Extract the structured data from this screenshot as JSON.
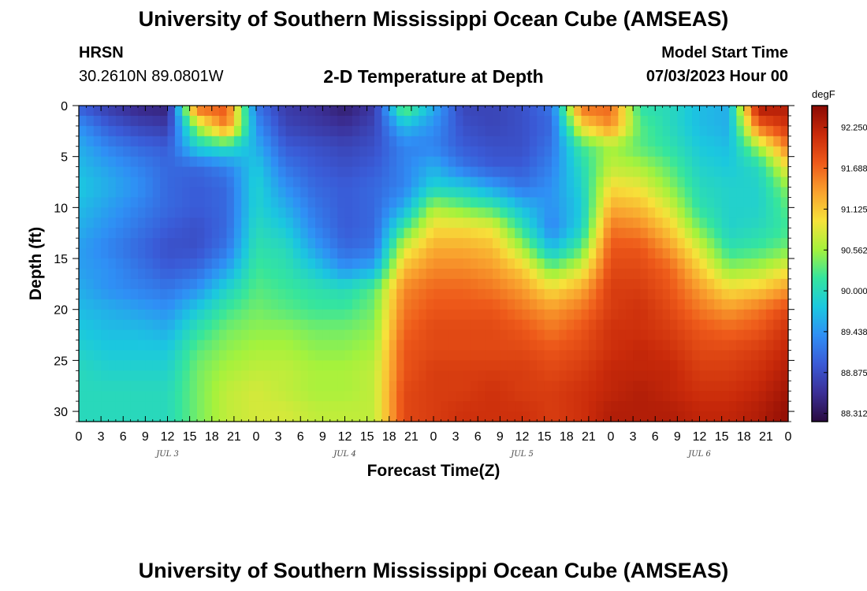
{
  "header": {
    "title": "University of Southern Mississippi Ocean Cube (AMSEAS)",
    "station": "HRSN",
    "coordinates": "30.2610N  89.0801W",
    "subtitle": "2-D Temperature at Depth",
    "start_label": "Model Start Time",
    "start_value": "07/03/2023 Hour 00"
  },
  "footer": {
    "title": "University of Southern Mississippi Ocean Cube (AMSEAS)"
  },
  "chart_data": {
    "type": "heatmap",
    "title": "2-D Temperature at Depth",
    "xlabel": "Forecast Time(Z)",
    "ylabel": "Depth (ft)",
    "units": "degF",
    "x_unit": "hours since model start",
    "xlim": [
      0,
      96
    ],
    "ylim": [
      0,
      31
    ],
    "x_ticks": [
      0,
      3,
      6,
      9,
      12,
      15,
      18,
      21,
      24,
      27,
      30,
      33,
      36,
      39,
      42,
      45,
      48,
      51,
      54,
      57,
      60,
      63,
      66,
      69,
      72,
      75,
      78,
      81,
      84,
      87,
      90,
      93,
      96
    ],
    "x_tick_labels": [
      "0",
      "3",
      "6",
      "9",
      "12",
      "15",
      "18",
      "21",
      "0",
      "3",
      "6",
      "9",
      "12",
      "15",
      "18",
      "21",
      "0",
      "3",
      "6",
      "9",
      "12",
      "15",
      "18",
      "21",
      "0",
      "3",
      "6",
      "9",
      "12",
      "15",
      "18",
      "21",
      "0"
    ],
    "y_ticks": [
      0,
      5,
      10,
      15,
      20,
      25,
      30
    ],
    "day_labels": [
      {
        "label": "JUL 3",
        "hour": 12
      },
      {
        "label": "JUL 4",
        "hour": 36
      },
      {
        "label": "JUL 5",
        "hour": 60
      },
      {
        "label": "JUL 6",
        "hour": 84
      }
    ],
    "colorbar": {
      "vmin": 88.2,
      "vmax": 92.55,
      "ticks": [
        "92.250",
        "91.688",
        "91.125",
        "90.562",
        "90.000",
        "89.438",
        "88.875",
        "88.312"
      ],
      "colors": [
        "#2a0b3f",
        "#3b2f96",
        "#3a5ad6",
        "#2f8ff5",
        "#1bc8df",
        "#35e59e",
        "#a5f23c",
        "#f7e23a",
        "#f9a12e",
        "#ee5a1a",
        "#c92a0a",
        "#8a0a04"
      ]
    },
    "hours": [
      0,
      4,
      8,
      12,
      16,
      20,
      24,
      28,
      32,
      36,
      40,
      44,
      48,
      52,
      56,
      60,
      64,
      68,
      72,
      76,
      80,
      84,
      88,
      92,
      96
    ],
    "depths": [
      0,
      2,
      4,
      6,
      8,
      10,
      12,
      14,
      16,
      18,
      20,
      22,
      24,
      26,
      28,
      30,
      31
    ],
    "values": [
      [
        89.0,
        88.7,
        88.5,
        88.45,
        91.8,
        91.8,
        89.2,
        88.7,
        88.6,
        88.4,
        88.7,
        90.5,
        89.6,
        88.8,
        88.8,
        88.9,
        89.2,
        91.7,
        91.7,
        90.1,
        90.0,
        89.7,
        89.6,
        92.4,
        92.3
      ],
      [
        89.4,
        89.0,
        88.8,
        88.7,
        90.6,
        91.6,
        89.4,
        88.8,
        88.7,
        88.6,
        88.8,
        89.7,
        89.4,
        88.9,
        88.8,
        88.9,
        89.1,
        91.0,
        91.5,
        90.3,
        90.0,
        89.7,
        89.6,
        91.7,
        92.1
      ],
      [
        89.6,
        89.3,
        89.1,
        89.0,
        89.9,
        90.1,
        89.6,
        89.0,
        88.9,
        88.8,
        88.9,
        89.3,
        89.3,
        89.0,
        88.9,
        88.9,
        89.2,
        90.2,
        90.6,
        90.3,
        90.1,
        89.8,
        89.7,
        90.6,
        91.6
      ],
      [
        89.7,
        89.5,
        89.3,
        89.1,
        89.1,
        89.3,
        89.8,
        89.2,
        89.0,
        88.9,
        89.0,
        89.3,
        89.6,
        89.2,
        89.0,
        89.0,
        89.3,
        90.0,
        90.7,
        90.6,
        90.3,
        89.9,
        89.8,
        90.0,
        91.0
      ],
      [
        89.8,
        89.6,
        89.4,
        89.1,
        89.0,
        89.1,
        89.9,
        89.4,
        89.1,
        89.0,
        89.1,
        89.3,
        89.9,
        89.8,
        89.5,
        89.2,
        89.4,
        89.9,
        91.0,
        90.9,
        90.5,
        90.0,
        89.9,
        89.9,
        90.5
      ],
      [
        89.7,
        89.5,
        89.3,
        89.1,
        89.0,
        89.1,
        89.9,
        89.6,
        89.2,
        89.0,
        89.1,
        89.6,
        90.6,
        90.4,
        90.2,
        89.7,
        89.4,
        89.8,
        91.3,
        91.2,
        90.8,
        90.1,
        89.9,
        89.9,
        90.3
      ],
      [
        89.6,
        89.4,
        89.2,
        89.0,
        88.9,
        89.1,
        90.0,
        89.8,
        89.3,
        89.0,
        89.1,
        90.2,
        91.0,
        91.0,
        90.9,
        90.1,
        89.3,
        89.9,
        91.6,
        91.5,
        91.1,
        90.4,
        89.9,
        90.0,
        90.2
      ],
      [
        89.5,
        89.3,
        89.1,
        88.9,
        88.9,
        89.2,
        90.1,
        90.0,
        89.5,
        89.1,
        89.2,
        90.8,
        91.3,
        91.3,
        91.2,
        90.6,
        89.7,
        90.3,
        91.8,
        91.8,
        91.4,
        90.8,
        90.1,
        90.2,
        90.4
      ],
      [
        89.5,
        89.4,
        89.2,
        89.0,
        89.1,
        89.5,
        90.2,
        90.1,
        89.8,
        89.4,
        89.6,
        91.2,
        91.5,
        91.5,
        91.4,
        91.1,
        90.4,
        90.8,
        91.9,
        91.9,
        91.7,
        91.1,
        90.5,
        90.6,
        90.9
      ],
      [
        89.6,
        89.4,
        89.3,
        89.2,
        89.4,
        89.9,
        90.3,
        90.2,
        90.1,
        90.0,
        90.3,
        91.5,
        91.7,
        91.7,
        91.6,
        91.4,
        91.0,
        91.3,
        92.0,
        92.0,
        91.8,
        91.4,
        91.0,
        91.1,
        91.4
      ],
      [
        89.7,
        89.6,
        89.5,
        89.4,
        89.8,
        90.2,
        90.4,
        90.3,
        90.2,
        90.2,
        90.4,
        91.6,
        91.8,
        91.8,
        91.8,
        91.6,
        91.4,
        91.6,
        92.0,
        92.1,
        91.9,
        91.6,
        91.4,
        91.6,
        91.9
      ],
      [
        89.8,
        89.7,
        89.7,
        89.6,
        90.1,
        90.4,
        90.5,
        90.5,
        90.4,
        90.4,
        90.5,
        91.7,
        91.9,
        91.9,
        91.9,
        91.8,
        91.6,
        91.8,
        92.1,
        92.1,
        92.0,
        91.8,
        91.7,
        91.8,
        92.1
      ],
      [
        89.9,
        89.8,
        89.8,
        89.8,
        90.3,
        90.5,
        90.6,
        90.6,
        90.5,
        90.5,
        90.6,
        91.8,
        91.9,
        91.9,
        91.9,
        91.9,
        91.8,
        91.9,
        92.1,
        92.2,
        92.1,
        91.9,
        91.9,
        92.0,
        92.2
      ],
      [
        90.0,
        89.9,
        89.9,
        89.9,
        90.4,
        90.6,
        90.7,
        90.7,
        90.6,
        90.6,
        90.7,
        91.8,
        92.0,
        92.0,
        92.0,
        92.0,
        91.9,
        92.0,
        92.2,
        92.2,
        92.2,
        92.0,
        92.0,
        92.1,
        92.3
      ],
      [
        90.0,
        90.0,
        90.0,
        90.0,
        90.4,
        90.7,
        90.8,
        90.7,
        90.6,
        90.6,
        90.7,
        91.9,
        92.0,
        92.0,
        92.1,
        92.0,
        92.0,
        92.1,
        92.2,
        92.3,
        92.2,
        92.1,
        92.1,
        92.2,
        92.4
      ],
      [
        90.0,
        90.0,
        90.0,
        90.0,
        90.4,
        90.7,
        90.8,
        90.8,
        90.7,
        90.7,
        90.7,
        91.9,
        92.0,
        92.1,
        92.1,
        92.1,
        92.0,
        92.1,
        92.3,
        92.3,
        92.3,
        92.2,
        92.2,
        92.3,
        92.5
      ],
      [
        90.0,
        90.0,
        90.0,
        90.0,
        90.4,
        90.7,
        90.8,
        90.8,
        90.7,
        90.7,
        90.7,
        91.9,
        92.0,
        92.1,
        92.1,
        92.1,
        92.0,
        92.1,
        92.3,
        92.3,
        92.3,
        92.2,
        92.2,
        92.3,
        92.5
      ]
    ]
  }
}
